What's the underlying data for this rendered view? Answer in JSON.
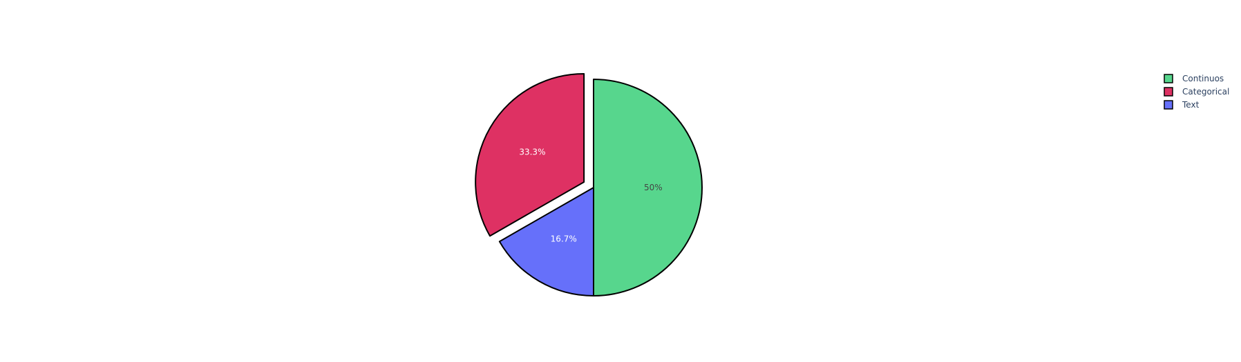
{
  "chart_data": {
    "type": "pie",
    "title": "",
    "direction": "clockwise",
    "start_angle_deg": 90,
    "slices": [
      {
        "label": "Continuos",
        "value": 50.0,
        "percent_text": "50%",
        "color": "#57d68d",
        "text_color": "#444444",
        "pulled": false
      },
      {
        "label": "Text",
        "value": 16.7,
        "percent_text": "16.7%",
        "color": "#6670fa",
        "text_color": "#ffffff",
        "pulled": false
      },
      {
        "label": "Categorical",
        "value": 33.3,
        "percent_text": "33.3%",
        "color": "#de3163",
        "text_color": "#ffffff",
        "pulled": true
      }
    ],
    "legend": {
      "position": "top-right",
      "items": [
        {
          "label": "Continuos",
          "color": "#57d68d"
        },
        {
          "label": "Categorical",
          "color": "#de3163"
        },
        {
          "label": "Text",
          "color": "#6670fa"
        }
      ]
    },
    "slice_border_color": "#000000"
  }
}
